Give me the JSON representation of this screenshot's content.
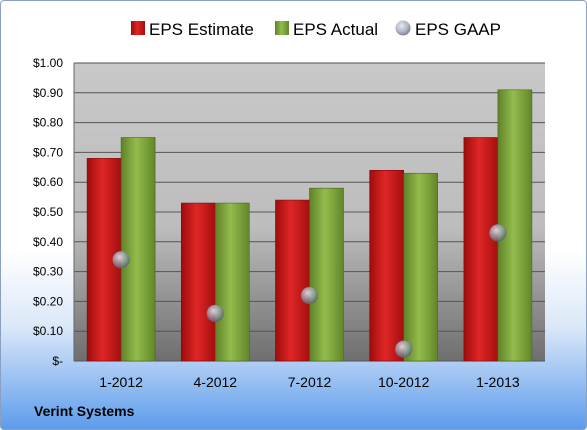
{
  "company": "Verint Systems",
  "colors": {
    "estimate": "#cc1414",
    "actual": "#7ea63a",
    "gaap": "#9aa3b3"
  },
  "chart_data": {
    "type": "bar",
    "categories": [
      "1-2012",
      "4-2012",
      "7-2012",
      "10-2012",
      "1-2013"
    ],
    "series": [
      {
        "name": "EPS Estimate",
        "kind": "bar",
        "values": [
          0.68,
          0.53,
          0.54,
          0.64,
          0.75
        ]
      },
      {
        "name": "EPS Actual",
        "kind": "bar",
        "values": [
          0.75,
          0.53,
          0.58,
          0.63,
          0.91
        ]
      },
      {
        "name": "EPS GAAP",
        "kind": "point",
        "values": [
          0.34,
          0.16,
          0.22,
          0.04,
          0.43
        ]
      }
    ],
    "ylim": [
      0,
      1.0
    ],
    "yticks": [
      0,
      0.1,
      0.2,
      0.3,
      0.4,
      0.5,
      0.6,
      0.7,
      0.8,
      0.9,
      1.0
    ],
    "ytick_labels": [
      "$-",
      "$0.10",
      "$0.20",
      "$0.30",
      "$0.40",
      "$0.50",
      "$0.60",
      "$0.70",
      "$0.80",
      "$0.90",
      "$1.00"
    ],
    "legend": "top",
    "grid": true
  }
}
